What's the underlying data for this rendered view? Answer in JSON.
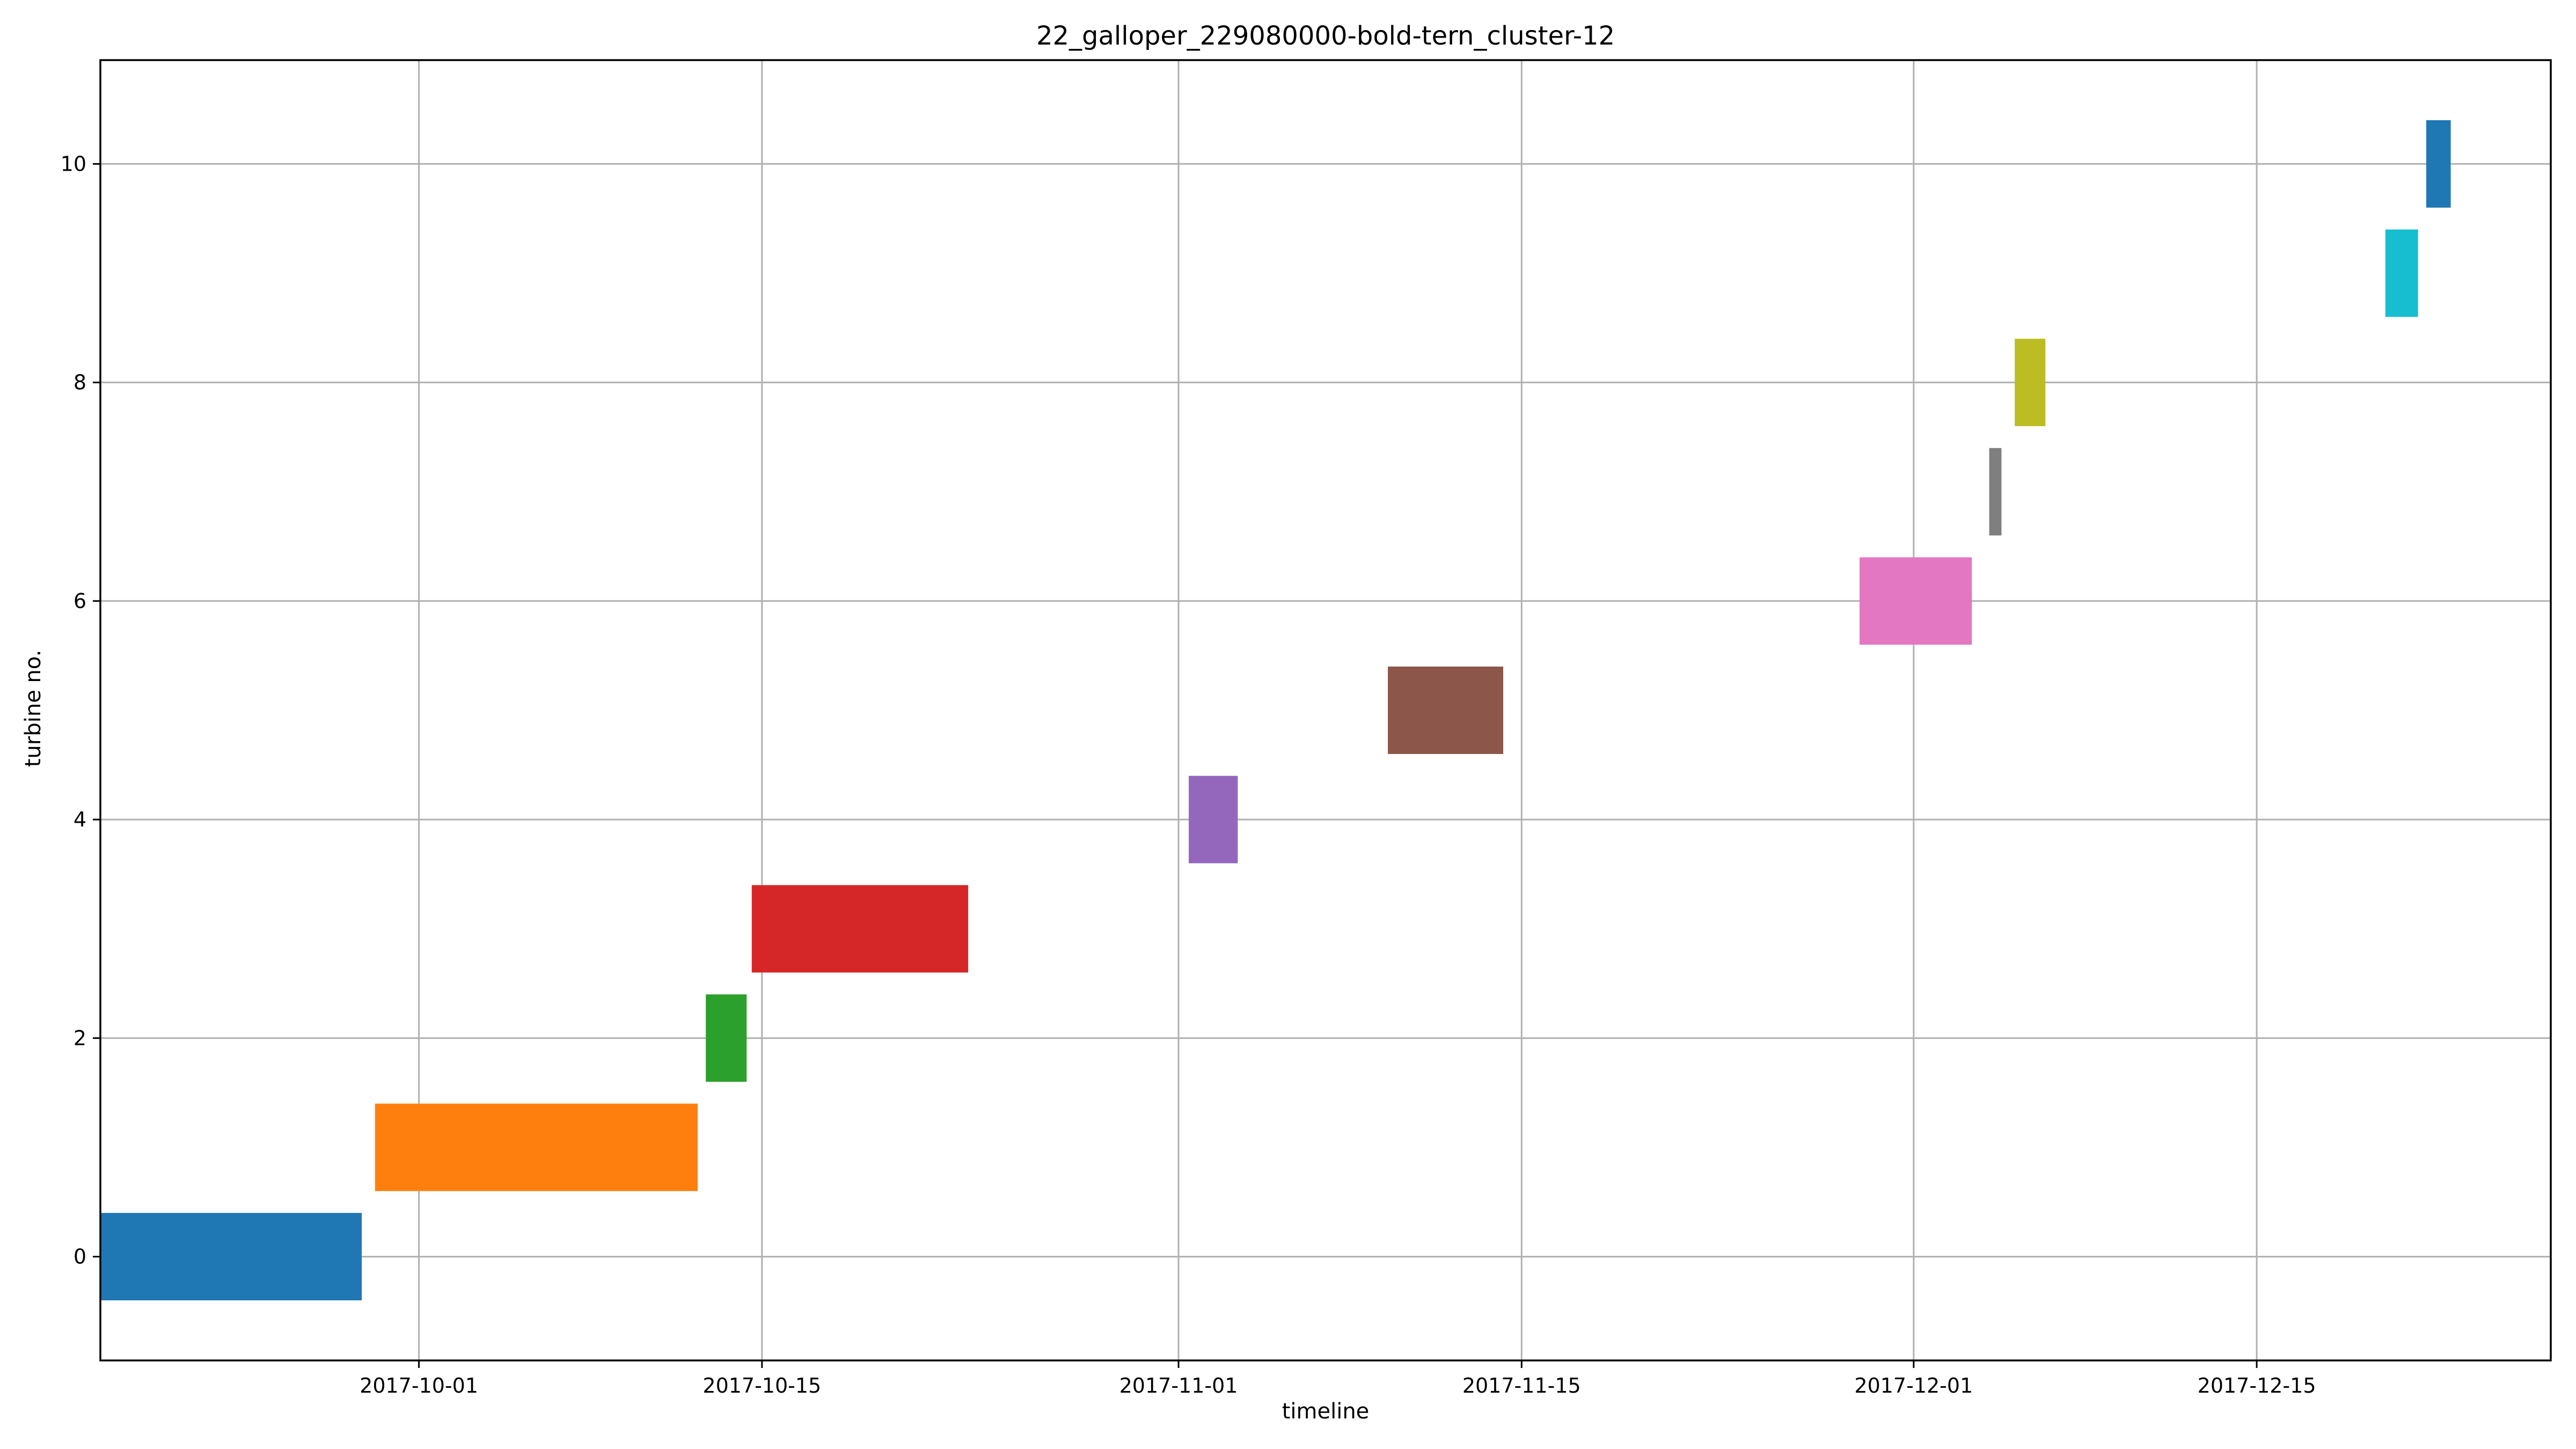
{
  "chart_data": {
    "type": "bar",
    "orientation": "horizontal-timeline",
    "title": "22_galloper_229080000-bold-tern_cluster-12",
    "xlabel": "timeline",
    "ylabel": "turbine no.",
    "xlim": [
      "2017-09-18",
      "2017-12-27"
    ],
    "ylim": [
      -0.95,
      10.95
    ],
    "grid": true,
    "bar_height": 0.8,
    "x_ticks": [
      {
        "date": "2017-10-01",
        "label": "2017-10-01"
      },
      {
        "date": "2017-10-15",
        "label": "2017-10-15"
      },
      {
        "date": "2017-11-01",
        "label": "2017-11-01"
      },
      {
        "date": "2017-11-15",
        "label": "2017-11-15"
      },
      {
        "date": "2017-12-01",
        "label": "2017-12-01"
      },
      {
        "date": "2017-12-15",
        "label": "2017-12-15"
      }
    ],
    "y_ticks": [
      {
        "value": 0,
        "label": "0"
      },
      {
        "value": 2,
        "label": "2"
      },
      {
        "value": 4,
        "label": "4"
      },
      {
        "value": 6,
        "label": "6"
      },
      {
        "value": 8,
        "label": "8"
      },
      {
        "value": 10,
        "label": "10"
      }
    ],
    "bars": [
      {
        "turbine": 0,
        "start": "2017-09-18T00:00",
        "end": "2017-09-28T16:00",
        "color": "#1f77b4"
      },
      {
        "turbine": 1,
        "start": "2017-09-29T05:00",
        "end": "2017-10-12T09:00",
        "color": "#ff7f0e"
      },
      {
        "turbine": 2,
        "start": "2017-10-12T17:00",
        "end": "2017-10-14T09:00",
        "color": "#2ca02c"
      },
      {
        "turbine": 3,
        "start": "2017-10-14T14:00",
        "end": "2017-10-23T10:00",
        "color": "#d62728"
      },
      {
        "turbine": 4,
        "start": "2017-11-01T10:00",
        "end": "2017-11-03T10:00",
        "color": "#9467bd"
      },
      {
        "turbine": 5,
        "start": "2017-11-09T13:00",
        "end": "2017-11-14T06:00",
        "color": "#8c564b"
      },
      {
        "turbine": 6,
        "start": "2017-11-28T19:00",
        "end": "2017-12-03T09:00",
        "color": "#e377c2"
      },
      {
        "turbine": 7,
        "start": "2017-12-04T02:00",
        "end": "2017-12-04T14:00",
        "color": "#7f7f7f"
      },
      {
        "turbine": 8,
        "start": "2017-12-05T03:00",
        "end": "2017-12-06T09:00",
        "color": "#bcbd22"
      },
      {
        "turbine": 9,
        "start": "2017-12-20T06:00",
        "end": "2017-12-21T14:00",
        "color": "#17becf"
      },
      {
        "turbine": 10,
        "start": "2017-12-21T22:00",
        "end": "2017-12-22T22:00",
        "color": "#1f77b4"
      }
    ]
  }
}
